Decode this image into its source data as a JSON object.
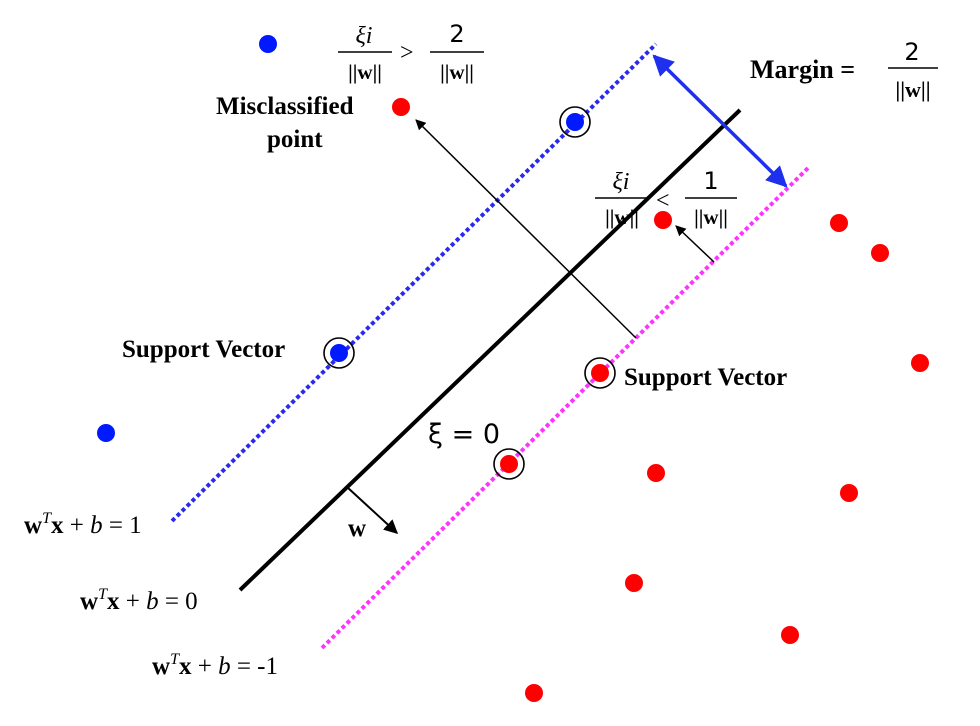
{
  "colors": {
    "blue_point": "#0019ff",
    "red_point": "#ff0000",
    "positive_margin_line": "#2a2aee",
    "negative_margin_line": "#ff33ff",
    "margin_arrow": "#1f2fee",
    "ink": "#000000"
  },
  "labels": {
    "margin_word": "Margin =",
    "margin_numerator": "2",
    "margin_denominator": "||w||",
    "misclassified_line1": "Misclassified",
    "misclassified_line2": "point",
    "xi_over_w": "ξi",
    "xi_gt_denominator": "||w||",
    "gt_symbol": ">",
    "gt_numerator": "2",
    "gt_rhs_denominator": "||w||",
    "lt_symbol": "<",
    "lt_numerator": "1",
    "lt_rhs_denominator": "||w||",
    "support_vector_left": "Support Vector",
    "support_vector_right": "Support Vector",
    "xi_zero": "ξ = 0",
    "w_vector": "w",
    "eq_plus_one": "wTx + b = 1",
    "eq_zero": "wTx + b = 0",
    "eq_minus_one": "wTx + b = -1"
  },
  "equations": {
    "plus_one": {
      "w": "w",
      "sup": "T",
      "rest_bold": "x",
      "plus": " + ",
      "b": "b",
      "tail": " = 1"
    },
    "zero": {
      "w": "w",
      "sup": "T",
      "rest_bold": "x",
      "plus": " + ",
      "b": "b",
      "tail": " = 0"
    },
    "minus_one": {
      "w": "w",
      "sup": "T",
      "rest_bold": "x",
      "plus": " + ",
      "b": "b",
      "tail": " = -1"
    }
  }
}
